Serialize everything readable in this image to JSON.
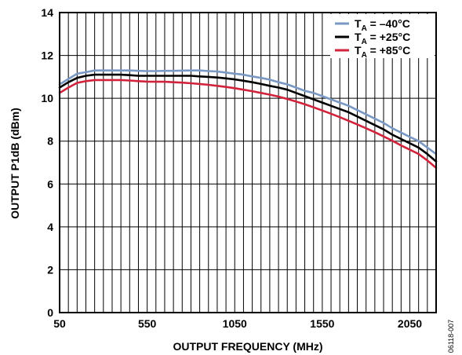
{
  "chart_data": {
    "type": "line",
    "xlabel": "OUTPUT FREQUENCY (MHz)",
    "ylabel": "OUTPUT P1dB (dBm)",
    "xlim": [
      50,
      2200
    ],
    "ylim": [
      0,
      14
    ],
    "xticks": [
      50,
      550,
      1050,
      1550,
      2050
    ],
    "xtick_labels": [
      "50",
      "550",
      "1050",
      "1550",
      "2050"
    ],
    "yticks": [
      0,
      2,
      4,
      6,
      8,
      10,
      12,
      14
    ],
    "ytick_labels": [
      "0",
      "2",
      "4",
      "6",
      "8",
      "10",
      "12",
      "14"
    ],
    "grid": true,
    "legend_position": "top-right",
    "figure_code": "06118-007",
    "series": [
      {
        "label_main": "T",
        "label_sub": "A",
        "label_rest": " = –40°C",
        "color": "#7a98c4",
        "x": [
          50,
          100,
          150,
          200,
          250,
          300,
          350,
          400,
          450,
          500,
          550,
          600,
          650,
          700,
          750,
          800,
          850,
          900,
          950,
          1000,
          1050,
          1100,
          1150,
          1200,
          1250,
          1300,
          1350,
          1400,
          1450,
          1500,
          1550,
          1600,
          1650,
          1700,
          1750,
          1800,
          1850,
          1900,
          1950,
          2000,
          2050,
          2100,
          2150,
          2200
        ],
        "y": [
          10.65,
          10.9,
          11.15,
          11.22,
          11.3,
          11.3,
          11.3,
          11.3,
          11.3,
          11.28,
          11.27,
          11.27,
          11.28,
          11.28,
          11.29,
          11.3,
          11.3,
          11.27,
          11.25,
          11.2,
          11.15,
          11.1,
          11.02,
          10.95,
          10.87,
          10.75,
          10.65,
          10.5,
          10.35,
          10.25,
          10.1,
          9.95,
          9.8,
          9.65,
          9.45,
          9.25,
          9.05,
          8.85,
          8.6,
          8.4,
          8.2,
          8.0,
          7.7,
          7.4
        ]
      },
      {
        "label_main": "T",
        "label_sub": "A",
        "label_rest": " = +25°C",
        "color": "#000000",
        "x": [
          50,
          100,
          150,
          200,
          250,
          300,
          350,
          400,
          450,
          500,
          550,
          600,
          650,
          700,
          750,
          800,
          850,
          900,
          950,
          1000,
          1050,
          1100,
          1150,
          1200,
          1250,
          1300,
          1350,
          1400,
          1450,
          1500,
          1550,
          1600,
          1650,
          1700,
          1750,
          1800,
          1850,
          1900,
          1950,
          2000,
          2050,
          2100,
          2150,
          2200
        ],
        "y": [
          10.5,
          10.75,
          10.95,
          11.05,
          11.1,
          11.1,
          11.1,
          11.1,
          11.08,
          11.05,
          11.05,
          11.05,
          11.05,
          11.05,
          11.05,
          11.05,
          11.02,
          11.0,
          10.97,
          10.93,
          10.88,
          10.82,
          10.75,
          10.67,
          10.58,
          10.5,
          10.4,
          10.25,
          10.1,
          9.95,
          9.8,
          9.65,
          9.5,
          9.35,
          9.15,
          8.95,
          8.75,
          8.55,
          8.3,
          8.1,
          7.9,
          7.7,
          7.4,
          7.05
        ]
      },
      {
        "label_main": "T",
        "label_sub": "A",
        "label_rest": " = +85°C",
        "color": "#d2233c",
        "x": [
          50,
          100,
          150,
          200,
          250,
          300,
          350,
          400,
          450,
          500,
          550,
          600,
          650,
          700,
          750,
          800,
          850,
          900,
          950,
          1000,
          1050,
          1100,
          1150,
          1200,
          1250,
          1300,
          1350,
          1400,
          1450,
          1500,
          1550,
          1600,
          1650,
          1700,
          1750,
          1800,
          1850,
          1900,
          1950,
          2000,
          2050,
          2100,
          2150,
          2200
        ],
        "y": [
          10.25,
          10.5,
          10.72,
          10.8,
          10.85,
          10.85,
          10.85,
          10.85,
          10.83,
          10.8,
          10.78,
          10.77,
          10.77,
          10.75,
          10.73,
          10.7,
          10.67,
          10.63,
          10.58,
          10.53,
          10.47,
          10.4,
          10.33,
          10.25,
          10.17,
          10.08,
          9.97,
          9.85,
          9.72,
          9.58,
          9.43,
          9.28,
          9.12,
          8.95,
          8.78,
          8.6,
          8.42,
          8.22,
          8.02,
          7.8,
          7.6,
          7.4,
          7.1,
          6.75
        ]
      }
    ]
  }
}
